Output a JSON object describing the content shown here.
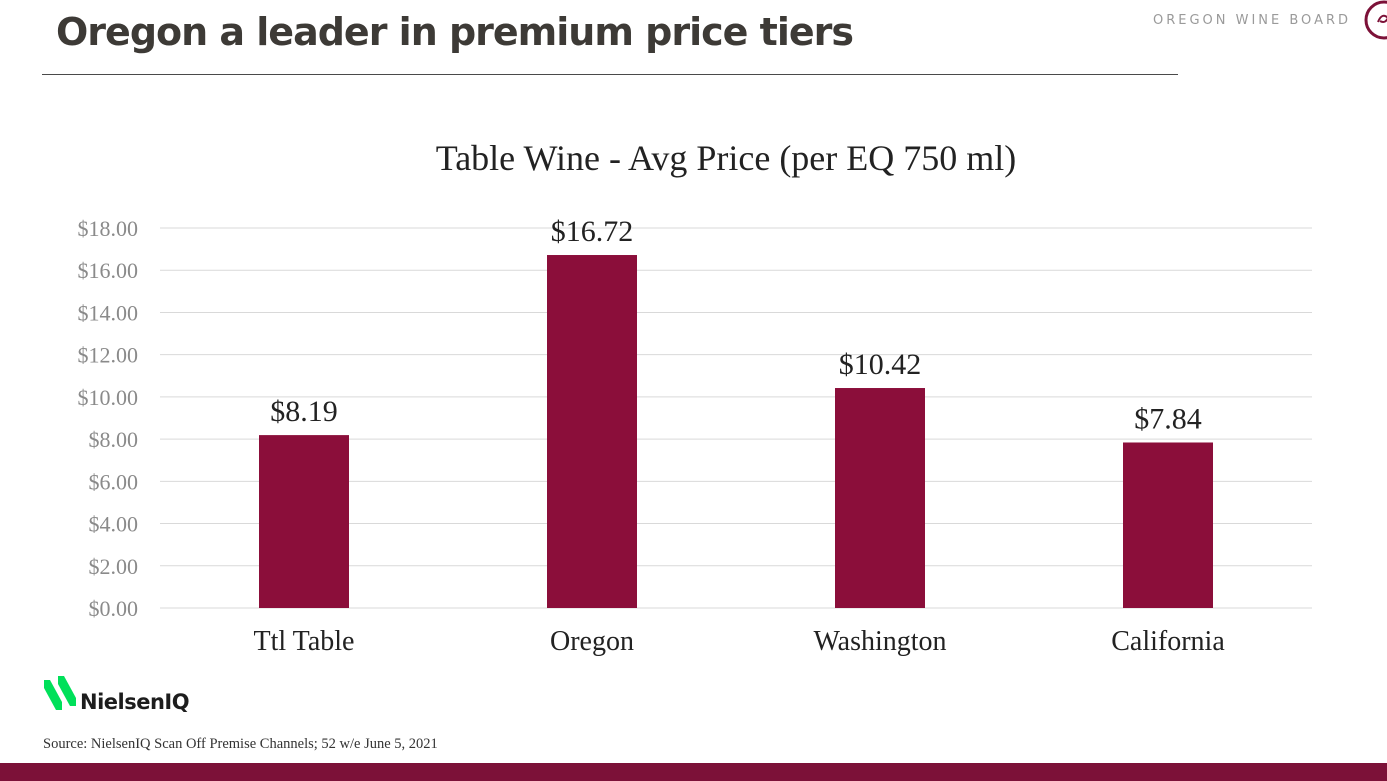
{
  "slide": {
    "title": "Oregon a leader in premium price tiers",
    "brand": "OREGON WINE BOARD",
    "logo_text": "NielsenIQ",
    "source": "Source: NielsenIQ  Scan Off Premise Channels; 52 w/e June 5, 2021"
  },
  "colors": {
    "bar": "#8b0e3a",
    "footer": "#7c1138",
    "grid": "#d9d9d9",
    "tick": "#8a8a8a",
    "logo_green": "#00e05a"
  },
  "icons": {
    "brand_logo": "swirl-logo-icon",
    "nielsen_logo": "nielseniq-logo-icon"
  },
  "chart_data": {
    "type": "bar",
    "title": "Table Wine - Avg Price (per EQ 750 ml)",
    "categories": [
      "Ttl Table",
      "Oregon",
      "Washington",
      "California"
    ],
    "values": [
      8.19,
      16.72,
      10.42,
      7.84
    ],
    "value_labels": [
      "$8.19",
      "$16.72",
      "$10.42",
      "$7.84"
    ],
    "xlabel": "",
    "ylabel": "",
    "ylim": [
      0,
      18
    ],
    "yticks": [
      0,
      2,
      4,
      6,
      8,
      10,
      12,
      14,
      16,
      18
    ],
    "ytick_labels": [
      "$0.00",
      "$2.00",
      "$4.00",
      "$6.00",
      "$8.00",
      "$10.00",
      "$12.00",
      "$14.00",
      "$16.00",
      "$18.00"
    ],
    "grid": true,
    "legend": "none"
  }
}
